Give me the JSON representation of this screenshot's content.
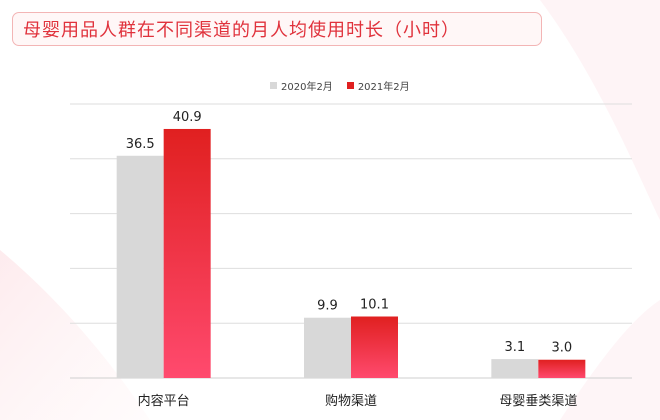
{
  "title": "母婴用品人群在不同渠道的月人均使用时长（小时）",
  "colors": {
    "series_2020": "#d8d8d8",
    "series_2021_top": "#e02020",
    "series_2021_bottom": "#ff4a6e",
    "title_accent": "#e0323c",
    "grid": "#dedede"
  },
  "chart_data": {
    "type": "bar",
    "title": "母婴用品人群在不同渠道的月人均使用时长（小时）",
    "categories": [
      "内容平台",
      "购物渠道",
      "母婴垂类渠道"
    ],
    "series": [
      {
        "name": "2020年2月",
        "values": [
          36.5,
          9.9,
          3.1
        ]
      },
      {
        "name": "2021年2月",
        "values": [
          40.9,
          10.1,
          3.0
        ]
      }
    ],
    "value_labels": [
      [
        "36.5",
        "9.9",
        "3.1"
      ],
      [
        "40.9",
        "10.1",
        "3.0"
      ]
    ],
    "ylim": [
      0,
      45
    ],
    "grid": true,
    "legend_position": "top-center"
  }
}
